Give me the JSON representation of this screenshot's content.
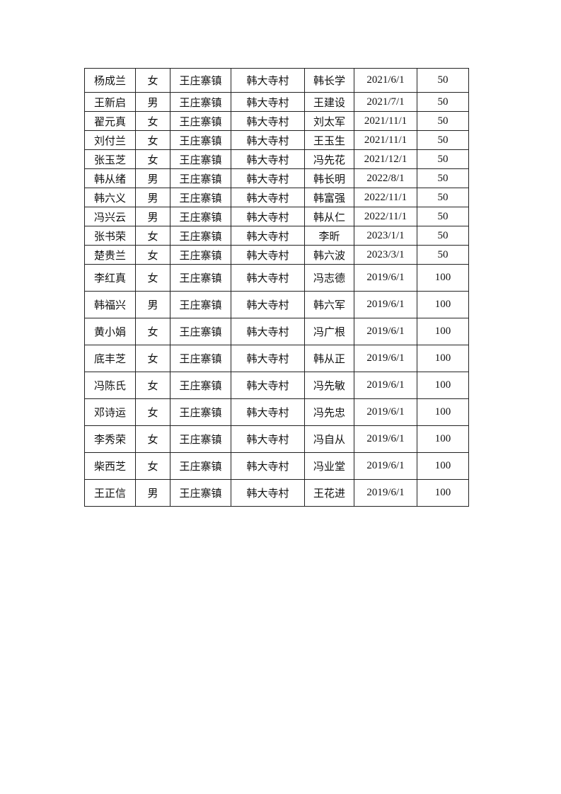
{
  "table": {
    "rows": [
      [
        "杨成兰",
        "女",
        "王庄寨镇",
        "韩大寺村",
        "韩长学",
        "2021/6/1",
        "50"
      ],
      [
        "王新启",
        "男",
        "王庄寨镇",
        "韩大寺村",
        "王建设",
        "2021/7/1",
        "50"
      ],
      [
        "翟元真",
        "女",
        "王庄寨镇",
        "韩大寺村",
        "刘太军",
        "2021/11/1",
        "50"
      ],
      [
        "刘付兰",
        "女",
        "王庄寨镇",
        "韩大寺村",
        "王玉生",
        "2021/11/1",
        "50"
      ],
      [
        "张玉芝",
        "女",
        "王庄寨镇",
        "韩大寺村",
        "冯先花",
        "2021/12/1",
        "50"
      ],
      [
        "韩从绪",
        "男",
        "王庄寨镇",
        "韩大寺村",
        "韩长明",
        "2022/8/1",
        "50"
      ],
      [
        "韩六义",
        "男",
        "王庄寨镇",
        "韩大寺村",
        "韩富强",
        "2022/11/1",
        "50"
      ],
      [
        "冯兴云",
        "男",
        "王庄寨镇",
        "韩大寺村",
        "韩从仁",
        "2022/11/1",
        "50"
      ],
      [
        "张书荣",
        "女",
        "王庄寨镇",
        "韩大寺村",
        "李昕",
        "2023/1/1",
        "50"
      ],
      [
        "楚贵兰",
        "女",
        "王庄寨镇",
        "韩大寺村",
        "韩六波",
        "2023/3/1",
        "50"
      ],
      [
        "李红真",
        "女",
        "王庄寨镇",
        "韩大寺村",
        "冯志德",
        "2019/6/1",
        "100"
      ],
      [
        "韩福兴",
        "男",
        "王庄寨镇",
        "韩大寺村",
        "韩六军",
        "2019/6/1",
        "100"
      ],
      [
        "黄小娟",
        "女",
        "王庄寨镇",
        "韩大寺村",
        "冯广根",
        "2019/6/1",
        "100"
      ],
      [
        "底丰芝",
        "女",
        "王庄寨镇",
        "韩大寺村",
        "韩从正",
        "2019/6/1",
        "100"
      ],
      [
        "冯陈氏",
        "女",
        "王庄寨镇",
        "韩大寺村",
        "冯先敏",
        "2019/6/1",
        "100"
      ],
      [
        "邓诗运",
        "女",
        "王庄寨镇",
        "韩大寺村",
        "冯先忠",
        "2019/6/1",
        "100"
      ],
      [
        "李秀荣",
        "女",
        "王庄寨镇",
        "韩大寺村",
        "冯自从",
        "2019/6/1",
        "100"
      ],
      [
        "柴西芝",
        "女",
        "王庄寨镇",
        "韩大寺村",
        "冯业堂",
        "2019/6/1",
        "100"
      ],
      [
        "王正信",
        "男",
        "王庄寨镇",
        "韩大寺村",
        "王花进",
        "2019/6/1",
        "100"
      ]
    ]
  }
}
